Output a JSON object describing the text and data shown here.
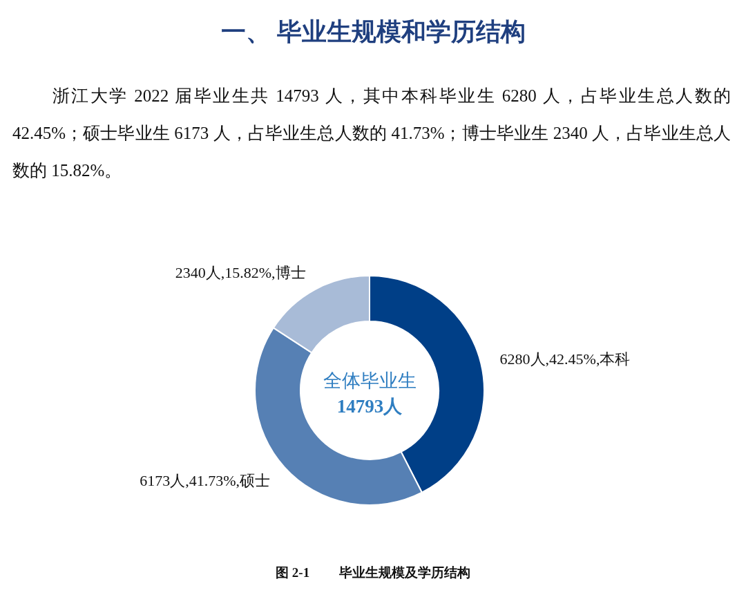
{
  "chart_data": {
    "type": "donut",
    "title": "一、 毕业生规模和学历结构",
    "subtitle": "浙江大学 2022 届毕业生共 14793 人，其中本科毕业生 6280 人，占毕业生总人数的 42.45%；硕士毕业生 6173 人，占毕业生总人数的 41.73%；博士毕业生 2340 人，占毕业生总人数的 15.82%。",
    "categories": [
      "本科",
      "硕士",
      "博士"
    ],
    "values": [
      6280,
      6173,
      2340
    ],
    "colors": [
      "#003f87",
      "#5680b4",
      "#a8bbd7"
    ],
    "value_labels": [
      "6280人,42.45%,",
      "6173人,41.73%,",
      "2340人,15.82%,"
    ],
    "annotations": [
      "全体毕业生",
      "14793人",
      "图 2-1　　 毕业生规模及学历结构"
    ]
  }
}
